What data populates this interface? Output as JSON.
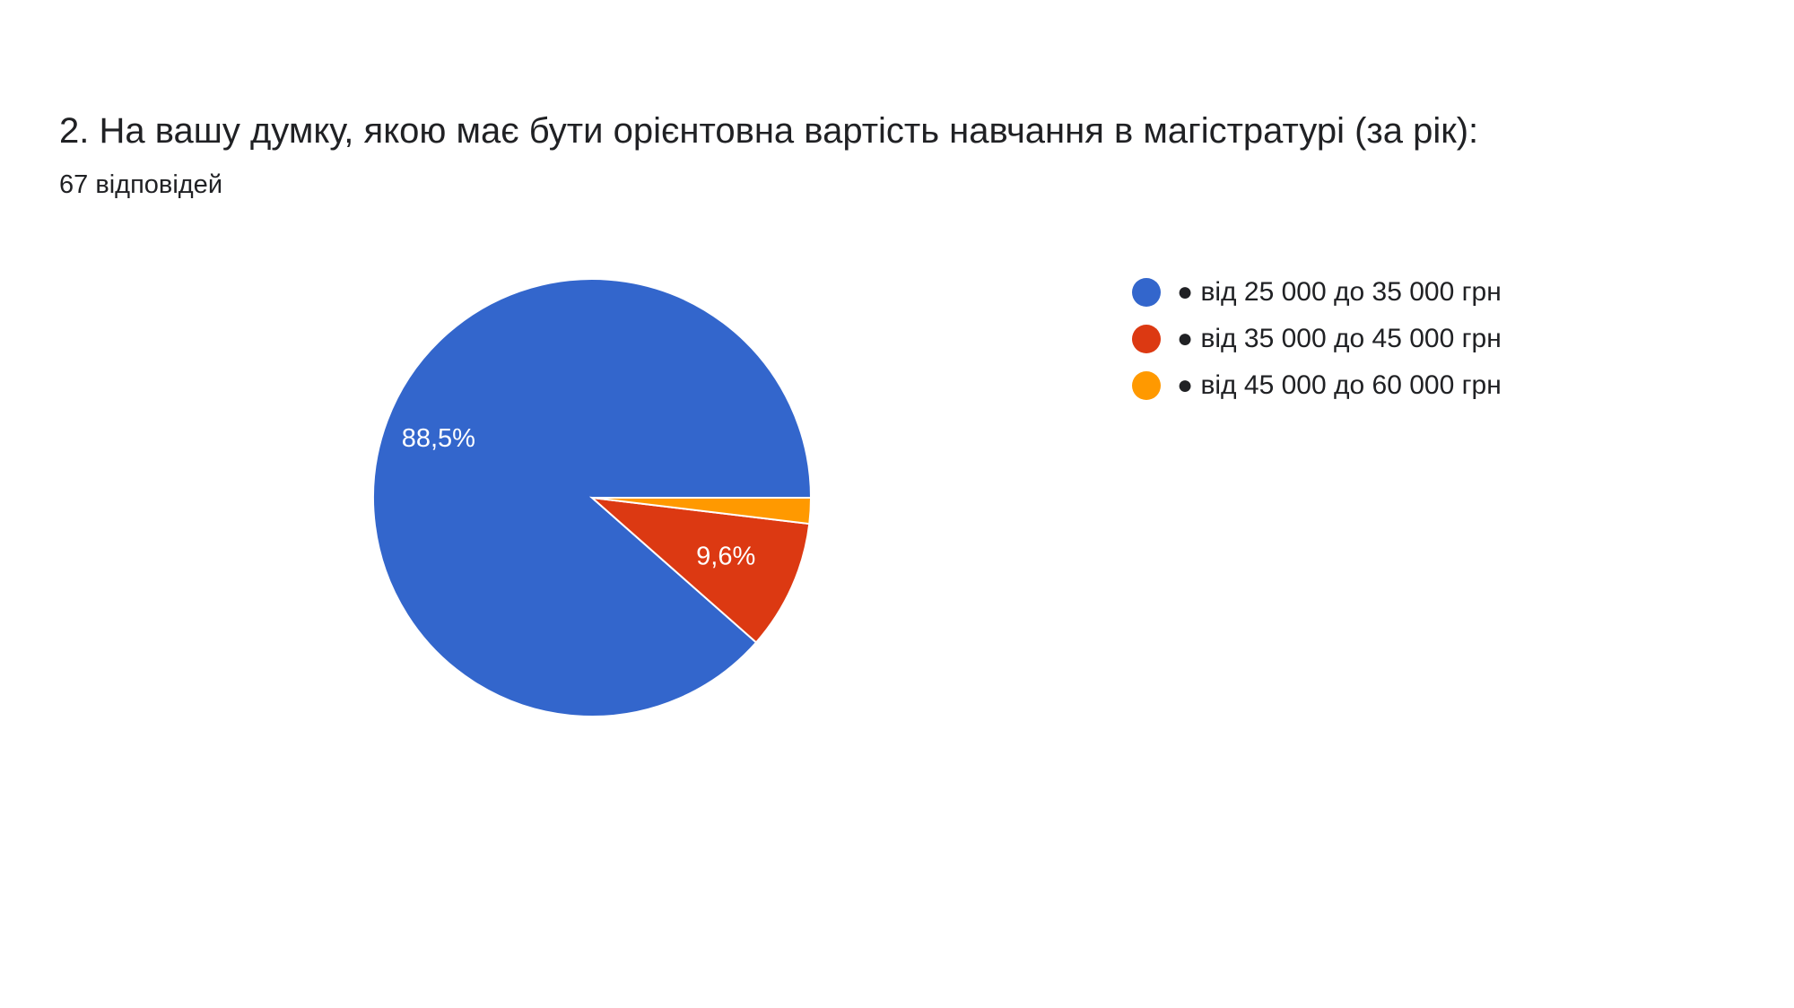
{
  "question": {
    "title": "2. На вашу думку, якою має бути орієнтовна вартість навчання в магістратурі (за рік):",
    "responses": "67 відповідей"
  },
  "chart_data": {
    "type": "pie",
    "title": "",
    "legend_position": "right",
    "slices": [
      {
        "label": "● від 25 000 до 35 000 грн",
        "value": 88.5,
        "display": "88,5%",
        "color": "#3366cc"
      },
      {
        "label": "● від 35 000 до 45 000 грн",
        "value": 9.6,
        "display": "9,6%",
        "color": "#dc3912"
      },
      {
        "label": "● від 45 000 до 60 000 грн",
        "value": 1.9,
        "display": "",
        "color": "#ff9900"
      }
    ]
  }
}
